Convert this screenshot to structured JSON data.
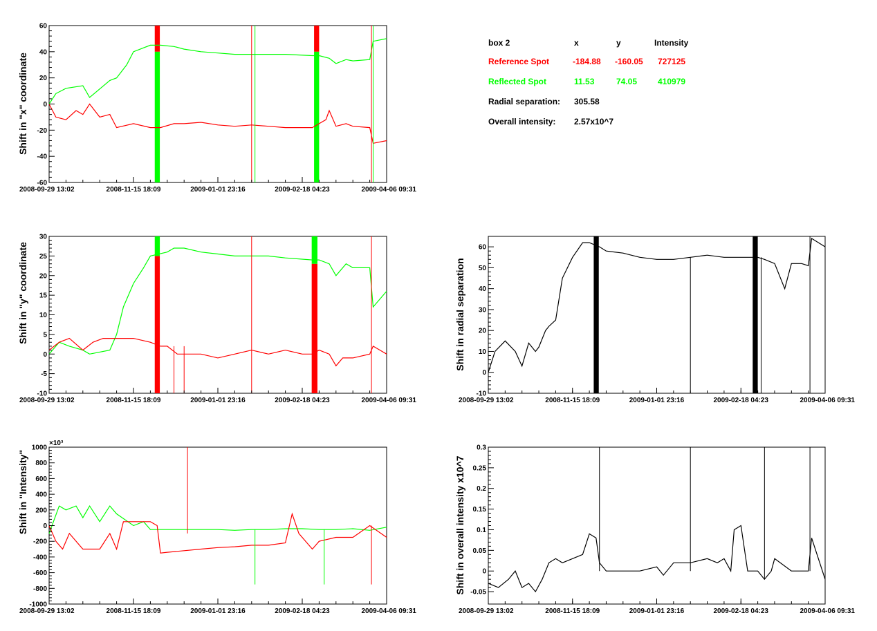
{
  "colors": {
    "reference": "#ff0000",
    "reflected": "#00ff00",
    "single": "#000000",
    "axis": "#000000"
  },
  "x_ticks": [
    "2008-09-29 13:02",
    "2008-11-15 18:09",
    "2009-01-01 23:16",
    "2009-02-18 04:23",
    "2009-04-06 09:31"
  ],
  "info_box": {
    "header": {
      "box": "box 2",
      "x": "x",
      "y": "y",
      "intensity": "Intensity"
    },
    "reference": {
      "label": "Reference Spot",
      "x": "-184.88",
      "y": "-160.05",
      "intensity": "727125"
    },
    "reflected": {
      "label": "Reflected Spot",
      "x": "11.53",
      "y": "74.05",
      "intensity": "410979"
    },
    "radial": {
      "label": "Radial separation:",
      "value": "305.58"
    },
    "overall": {
      "label": "Overall intensity:",
      "value": "2.57x10^7"
    }
  },
  "chart_data": [
    {
      "id": "x-shift",
      "type": "line",
      "ylabel": "Shift in \"x\" coordinate",
      "ylim": [
        -60,
        60
      ],
      "yticks": [
        -60,
        -40,
        -20,
        0,
        20,
        40,
        60
      ],
      "x_range": [
        0,
        1
      ],
      "series": [
        {
          "color": "#00ff00",
          "x": [
            0,
            0.02,
            0.05,
            0.1,
            0.12,
            0.18,
            0.2,
            0.23,
            0.25,
            0.3,
            0.33,
            0.37,
            0.4,
            0.45,
            0.5,
            0.55,
            0.6,
            0.65,
            0.7,
            0.78,
            0.8,
            0.83,
            0.85,
            0.88,
            0.9,
            0.95,
            0.96,
            1.0
          ],
          "y": [
            0,
            8,
            12,
            14,
            5,
            18,
            20,
            30,
            40,
            45,
            45,
            44,
            42,
            40,
            39,
            38,
            38,
            38,
            38,
            37,
            37,
            35,
            31,
            34,
            33,
            34,
            48,
            50
          ]
        },
        {
          "color": "#ff0000",
          "x": [
            0,
            0.02,
            0.05,
            0.08,
            0.1,
            0.12,
            0.15,
            0.18,
            0.2,
            0.25,
            0.3,
            0.33,
            0.37,
            0.4,
            0.45,
            0.5,
            0.55,
            0.6,
            0.65,
            0.7,
            0.78,
            0.8,
            0.82,
            0.83,
            0.85,
            0.88,
            0.9,
            0.95,
            0.96,
            1.0
          ],
          "y": [
            0,
            -10,
            -12,
            -5,
            -8,
            0,
            -10,
            -8,
            -18,
            -15,
            -18,
            -18,
            -15,
            -15,
            -14,
            -16,
            -17,
            -16,
            -17,
            -18,
            -18,
            -15,
            -12,
            -5,
            -17,
            -15,
            -17,
            -18,
            -30,
            -28
          ]
        }
      ],
      "bands": [
        {
          "x0": 0.313,
          "x1": 0.328,
          "color": "#ff0000",
          "y0": 40,
          "y1": 60
        },
        {
          "x0": 0.313,
          "x1": 0.328,
          "color": "#00ff00",
          "y0": -60,
          "y1": 40
        },
        {
          "x0": 0.785,
          "x1": 0.8,
          "color": "#ff0000",
          "y0": 40,
          "y1": 60
        },
        {
          "x0": 0.785,
          "x1": 0.8,
          "color": "#00ff00",
          "y0": -60,
          "y1": 40
        }
      ],
      "spikes": [
        {
          "x": 0.6,
          "color": "#ff0000",
          "y0": -60,
          "y1": 60
        },
        {
          "x": 0.61,
          "color": "#00ff00",
          "y0": -60,
          "y1": 60
        },
        {
          "x": 0.955,
          "color": "#ff0000",
          "y0": -60,
          "y1": 60
        },
        {
          "x": 0.96,
          "color": "#00ff00",
          "y0": -60,
          "y1": 60
        }
      ]
    },
    {
      "id": "y-shift",
      "type": "line",
      "ylabel": "Shift in \"y\" coordinate",
      "ylim": [
        -10,
        30
      ],
      "yticks": [
        -10,
        -5,
        0,
        5,
        10,
        15,
        20,
        25,
        30
      ],
      "x_range": [
        0,
        1
      ],
      "series": [
        {
          "color": "#00ff00",
          "x": [
            0,
            0.03,
            0.06,
            0.1,
            0.12,
            0.18,
            0.2,
            0.22,
            0.25,
            0.28,
            0.3,
            0.35,
            0.37,
            0.4,
            0.45,
            0.5,
            0.55,
            0.6,
            0.65,
            0.7,
            0.78,
            0.8,
            0.83,
            0.85,
            0.88,
            0.9,
            0.95,
            0.96,
            1.0
          ],
          "y": [
            0,
            3,
            2,
            1,
            0,
            1,
            5,
            12,
            18,
            22,
            25,
            26,
            27,
            27,
            26,
            25.5,
            25,
            25,
            25,
            24.5,
            24,
            24,
            23,
            20,
            23,
            22,
            22,
            12,
            16
          ]
        },
        {
          "color": "#ff0000",
          "x": [
            0,
            0.03,
            0.06,
            0.1,
            0.13,
            0.16,
            0.2,
            0.25,
            0.3,
            0.33,
            0.35,
            0.38,
            0.4,
            0.45,
            0.5,
            0.55,
            0.6,
            0.65,
            0.7,
            0.75,
            0.78,
            0.8,
            0.83,
            0.85,
            0.87,
            0.9,
            0.95,
            0.96,
            1.0
          ],
          "y": [
            1,
            3,
            4,
            1,
            3,
            4,
            4,
            4,
            3,
            2,
            2,
            0,
            0,
            0,
            -1,
            0,
            1,
            0,
            1,
            0,
            0,
            1,
            0,
            -3,
            -1,
            -1,
            0,
            2,
            0
          ]
        }
      ],
      "bands": [
        {
          "x0": 0.313,
          "x1": 0.328,
          "color": "#ff0000",
          "y0": -10,
          "y1": 25
        },
        {
          "x0": 0.313,
          "x1": 0.328,
          "color": "#00ff00",
          "y0": 25,
          "y1": 30
        },
        {
          "x0": 0.778,
          "x1": 0.795,
          "color": "#ff0000",
          "y0": -10,
          "y1": 23
        },
        {
          "x0": 0.778,
          "x1": 0.795,
          "color": "#00ff00",
          "y0": 23,
          "y1": 30
        }
      ],
      "spikes": [
        {
          "x": 0.6,
          "color": "#ff0000",
          "y0": -10,
          "y1": 30
        },
        {
          "x": 0.955,
          "color": "#ff0000",
          "y0": -10,
          "y1": 30
        },
        {
          "x": 0.37,
          "color": "#ff0000",
          "y0": -10,
          "y1": 2
        },
        {
          "x": 0.4,
          "color": "#ff0000",
          "y0": -10,
          "y1": 2
        }
      ]
    },
    {
      "id": "intensity-shift",
      "type": "line",
      "ylabel": "Shift in \"Intensity\"",
      "exponent_label": "×10³",
      "ylim": [
        -1000,
        1000
      ],
      "yticks": [
        -1000,
        -800,
        -600,
        -400,
        -200,
        0,
        200,
        400,
        600,
        800,
        1000
      ],
      "x_range": [
        0,
        1
      ],
      "series": [
        {
          "color": "#00ff00",
          "x": [
            0,
            0.03,
            0.05,
            0.08,
            0.1,
            0.12,
            0.15,
            0.18,
            0.2,
            0.25,
            0.28,
            0.3,
            0.33,
            0.35,
            0.4,
            0.45,
            0.5,
            0.55,
            0.6,
            0.65,
            0.7,
            0.72,
            0.75,
            0.8,
            0.85,
            0.9,
            0.95,
            1.0
          ],
          "y": [
            -100,
            250,
            200,
            250,
            100,
            250,
            50,
            250,
            150,
            0,
            50,
            -50,
            -50,
            -50,
            -50,
            -50,
            -50,
            -60,
            -50,
            -50,
            -40,
            -40,
            -40,
            -50,
            -50,
            -40,
            -60,
            -20
          ]
        },
        {
          "color": "#ff0000",
          "x": [
            0,
            0.02,
            0.04,
            0.06,
            0.1,
            0.15,
            0.18,
            0.2,
            0.22,
            0.25,
            0.3,
            0.32,
            0.33,
            0.35,
            0.4,
            0.45,
            0.5,
            0.55,
            0.6,
            0.65,
            0.7,
            0.72,
            0.74,
            0.78,
            0.8,
            0.85,
            0.9,
            0.95,
            1.0
          ],
          "y": [
            0,
            -200,
            -300,
            -100,
            -300,
            -300,
            -100,
            -300,
            50,
            50,
            50,
            0,
            -350,
            -340,
            -320,
            -300,
            -280,
            -270,
            -250,
            -250,
            -220,
            150,
            -100,
            -300,
            -200,
            -150,
            -150,
            0,
            -150
          ]
        }
      ],
      "bands": [],
      "spikes": [
        {
          "x": 0.41,
          "color": "#ff0000",
          "y0": -100,
          "y1": 1000
        },
        {
          "x": 0.61,
          "color": "#00ff00",
          "y0": -750,
          "y1": -50
        },
        {
          "x": 0.815,
          "color": "#00ff00",
          "y0": -750,
          "y1": -50
        },
        {
          "x": 0.955,
          "color": "#ff0000",
          "y0": -750,
          "y1": 0
        }
      ]
    },
    {
      "id": "radial-shift",
      "type": "line",
      "ylabel": "Shift in radial separation",
      "ylim": [
        -10,
        65
      ],
      "yticks": [
        -10,
        0,
        10,
        20,
        30,
        40,
        50,
        60
      ],
      "x_range": [
        0,
        1
      ],
      "series": [
        {
          "color": "#000000",
          "x": [
            0,
            0.02,
            0.05,
            0.08,
            0.1,
            0.12,
            0.14,
            0.15,
            0.17,
            0.18,
            0.2,
            0.22,
            0.25,
            0.28,
            0.3,
            0.33,
            0.35,
            0.4,
            0.45,
            0.5,
            0.55,
            0.6,
            0.65,
            0.7,
            0.75,
            0.8,
            0.82,
            0.85,
            0.88,
            0.9,
            0.93,
            0.95,
            0.96,
            1.0
          ],
          "y": [
            0,
            10,
            15,
            10,
            3,
            14,
            10,
            12,
            20,
            22,
            25,
            45,
            55,
            62,
            62,
            60,
            58,
            57,
            55,
            54,
            54,
            55,
            56,
            55,
            55,
            55,
            54,
            52,
            40,
            52,
            52,
            51,
            64,
            60
          ]
        }
      ],
      "bands": [
        {
          "x0": 0.313,
          "x1": 0.328,
          "color": "#000000",
          "y0": -10,
          "y1": 65
        },
        {
          "x0": 0.785,
          "x1": 0.8,
          "color": "#000000",
          "y0": -10,
          "y1": 65
        }
      ],
      "spikes": [
        {
          "x": 0.6,
          "color": "#000000",
          "y0": -10,
          "y1": 55
        },
        {
          "x": 0.81,
          "color": "#000000",
          "y0": -10,
          "y1": 55
        },
        {
          "x": 0.955,
          "color": "#000000",
          "y0": -10,
          "y1": 65
        }
      ]
    },
    {
      "id": "overall-intensity-shift",
      "type": "line",
      "ylabel": "Shift in overall intensity x10^7",
      "ylim": [
        -0.08,
        0.3
      ],
      "yticks": [
        -0.05,
        0,
        0.05,
        0.1,
        0.15,
        0.2,
        0.25,
        0.3
      ],
      "x_range": [
        0,
        1
      ],
      "series": [
        {
          "color": "#000000",
          "x": [
            0,
            0.03,
            0.06,
            0.08,
            0.1,
            0.12,
            0.14,
            0.16,
            0.18,
            0.2,
            0.22,
            0.25,
            0.28,
            0.3,
            0.32,
            0.33,
            0.35,
            0.4,
            0.45,
            0.5,
            0.52,
            0.55,
            0.6,
            0.65,
            0.68,
            0.7,
            0.72,
            0.73,
            0.75,
            0.77,
            0.8,
            0.82,
            0.84,
            0.85,
            0.9,
            0.95,
            0.96,
            1.0
          ],
          "y": [
            -0.03,
            -0.04,
            -0.02,
            0,
            -0.04,
            -0.03,
            -0.05,
            -0.02,
            0.02,
            0.03,
            0.02,
            0.03,
            0.04,
            0.09,
            0.08,
            0.02,
            0,
            0,
            0,
            0.01,
            -0.01,
            0.02,
            0.02,
            0.03,
            0.02,
            0.03,
            0,
            0.1,
            0.11,
            0,
            0,
            -0.02,
            0,
            0.03,
            0,
            0,
            0.08,
            -0.02
          ]
        }
      ],
      "bands": [],
      "spikes": [
        {
          "x": 0.33,
          "color": "#000000",
          "y0": 0,
          "y1": 0.3
        },
        {
          "x": 0.6,
          "color": "#000000",
          "y0": 0,
          "y1": 0.3
        },
        {
          "x": 0.82,
          "color": "#000000",
          "y0": -0.02,
          "y1": 0.3
        },
        {
          "x": 0.955,
          "color": "#000000",
          "y0": 0,
          "y1": 0.3
        }
      ]
    }
  ]
}
